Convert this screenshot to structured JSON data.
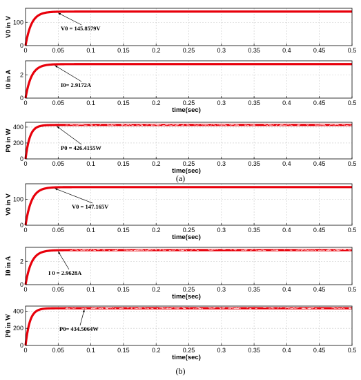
{
  "captions": [
    "(a)",
    "(b)"
  ],
  "colors": {
    "trace": "#e8000b",
    "grid": "#c8c8c8",
    "frame": "#000000"
  },
  "chart_data": [
    {
      "type": "line",
      "group": "a",
      "ylabel": "V0 in V",
      "xlabel": "",
      "xlim": [
        0,
        0.5
      ],
      "ylim": [
        0,
        160
      ],
      "yticks": [
        0,
        100
      ],
      "xticks": [
        0,
        0.05,
        0.1,
        0.15,
        0.2,
        0.25,
        0.3,
        0.35,
        0.4,
        0.45,
        0.5
      ],
      "grid": true,
      "steady": 145.8579,
      "tau": 0.009,
      "noise": 0,
      "annotation": "V0 = 145.8579V",
      "ann_target": [
        0.05,
        145.8579
      ]
    },
    {
      "type": "line",
      "group": "a",
      "ylabel": "I0 in A",
      "xlabel": "time(sec)",
      "xlim": [
        0,
        0.5
      ],
      "ylim": [
        0,
        3.2
      ],
      "yticks": [
        0,
        2
      ],
      "xticks": [
        0,
        0.05,
        0.1,
        0.15,
        0.2,
        0.25,
        0.3,
        0.35,
        0.4,
        0.45,
        0.5
      ],
      "grid": true,
      "steady": 2.9172,
      "tau": 0.009,
      "noise": 0,
      "annotation": "I0= 2.9172A",
      "ann_target": [
        0.045,
        2.9172
      ]
    },
    {
      "type": "line",
      "group": "a",
      "ylabel": "P0 in W",
      "xlabel": "time(sec)",
      "xlim": [
        0,
        0.5
      ],
      "ylim": [
        0,
        460
      ],
      "yticks": [
        0,
        200,
        400
      ],
      "xticks": [
        0,
        0.05,
        0.1,
        0.15,
        0.2,
        0.25,
        0.3,
        0.35,
        0.4,
        0.45,
        0.5
      ],
      "grid": true,
      "steady": 426.4155,
      "tau": 0.0065,
      "noise": 1,
      "annotation": "P0 = 426.4155W",
      "ann_target": [
        0.048,
        426.4155
      ]
    },
    {
      "type": "line",
      "group": "b",
      "ylabel": "V0 in V",
      "xlabel": "time(sec)",
      "xlim": [
        0,
        0.5
      ],
      "ylim": [
        0,
        160
      ],
      "yticks": [
        0,
        100
      ],
      "xticks": [
        0,
        0.05,
        0.1,
        0.15,
        0.2,
        0.25,
        0.3,
        0.35,
        0.4,
        0.45,
        0.5
      ],
      "grid": true,
      "steady": 147.165,
      "tau": 0.009,
      "noise": 0,
      "annotation": "V0 = 147.165V",
      "ann_target": [
        0.045,
        147.165
      ]
    },
    {
      "type": "line",
      "group": "b",
      "ylabel": "I0 in A",
      "xlabel": "time(sec)",
      "xlim": [
        0,
        0.5
      ],
      "ylim": [
        0,
        3.2
      ],
      "yticks": [
        0,
        2
      ],
      "xticks": [
        0,
        0.05,
        0.1,
        0.15,
        0.2,
        0.25,
        0.3,
        0.35,
        0.4,
        0.45,
        0.5
      ],
      "grid": true,
      "steady": 2.9628,
      "tau": 0.009,
      "noise": 1,
      "annotation": "I 0 = 2.9628A",
      "ann_target": [
        0.05,
        2.9628
      ]
    },
    {
      "type": "line",
      "group": "b",
      "ylabel": "P0 in W",
      "xlabel": "time(sec)",
      "xlim": [
        0,
        0.5
      ],
      "ylim": [
        0,
        460
      ],
      "yticks": [
        0,
        200,
        400
      ],
      "xticks": [
        0,
        0.05,
        0.1,
        0.15,
        0.2,
        0.25,
        0.3,
        0.35,
        0.4,
        0.45,
        0.5
      ],
      "grid": true,
      "steady": 434.5064,
      "tau": 0.0065,
      "noise": 1,
      "annotation": "P0= 434.5064W",
      "ann_target": [
        0.09,
        434.5064
      ]
    }
  ]
}
